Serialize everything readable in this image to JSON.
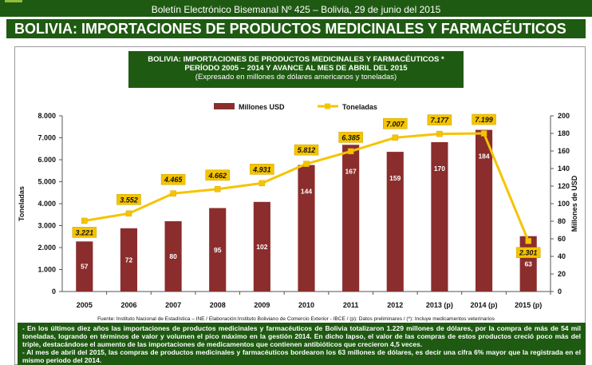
{
  "bulletin": "Boletín Electrónico Bisemanal Nº 425 – Bolivia, 29 de junio del 2015",
  "headline": "BOLIVIA: IMPORTACIONES DE PRODUCTOS MEDICINALES Y FARMACÉUTICOS",
  "source": "Fuente: Instituto Nacional de Estadística – INE / Elaboración:Instituto Boliviano de Comercio Exterior - IBCE / (p): Datos preliminares / (*): Incluye medicamentos veterinarios",
  "notes": [
    "- En los últimos diez años las importaciones de productos medicinales y farmacéuticos de Bolivia totalizaron 1.229 millones de dólares, por la compra de más de 54 mil toneladas, logrando en términos de valor y volumen el pico máximo en la gestión 2014. En dicho lapso, el valor de las compras de estos productos creció poco más del triple, destacándose el aumento de las importaciones de medicamentos que contienen antibióticos que crecieron 4,5 veces.",
    "- Al mes de abril del 2015, las compras de productos medicinales y farmacéuticos bordearon los 63 millones de dólares, es decir una cifra 6% mayor que la registrada en el mismo periodo del 2014."
  ],
  "colors": {
    "dark_green": "#1f5a12",
    "bar": "#8b2d2d",
    "line": "#f5c400",
    "label_box": "#f5c400"
  },
  "chart_data": {
    "type": "bar+line",
    "title": "BOLIVIA: IMPORTACIONES DE PRODUCTOS MEDICINALES Y FARMACÉUTICOS *",
    "subtitle": "PERÍODO 2005 – 2014 Y AVANCE AL MES DE ABRIL DEL 2015",
    "subtitle2": "(Expresado en millones de dólares americanos y toneladas)",
    "categories": [
      "2005",
      "2006",
      "2007",
      "2008",
      "2009",
      "2010",
      "2011",
      "2012",
      "2013 (p)",
      "2014 (p)",
      "2015 (p)"
    ],
    "series": [
      {
        "name": "Millones USD",
        "type": "bar",
        "axis": "right",
        "values": [
          57,
          72,
          80,
          95,
          102,
          144,
          167,
          159,
          170,
          184,
          63
        ],
        "labels": [
          "57",
          "72",
          "80",
          "95",
          "102",
          "144",
          "167",
          "159",
          "170",
          "184",
          "63"
        ]
      },
      {
        "name": "Toneladas",
        "type": "line",
        "axis": "left",
        "values": [
          3221,
          3552,
          4465,
          4662,
          4931,
          5812,
          6385,
          7007,
          7177,
          7199,
          2301
        ],
        "labels": [
          "3.221",
          "3.552",
          "4.465",
          "4.662",
          "4.931",
          "5.812",
          "6.385",
          "7.007",
          "7.177",
          "7.199",
          "2.301"
        ]
      }
    ],
    "left_axis": {
      "label": "Toneladas",
      "range": [
        0,
        8000
      ],
      "ticks": [
        "0",
        "1.000",
        "2.000",
        "3.000",
        "4.000",
        "5.000",
        "6.000",
        "7.000",
        "8.000"
      ]
    },
    "right_axis": {
      "label": "Millones de USD",
      "range": [
        0,
        200
      ],
      "ticks": [
        "0",
        "20",
        "40",
        "60",
        "80",
        "100",
        "120",
        "140",
        "160",
        "180",
        "200"
      ]
    },
    "legend_position": "top-center"
  }
}
